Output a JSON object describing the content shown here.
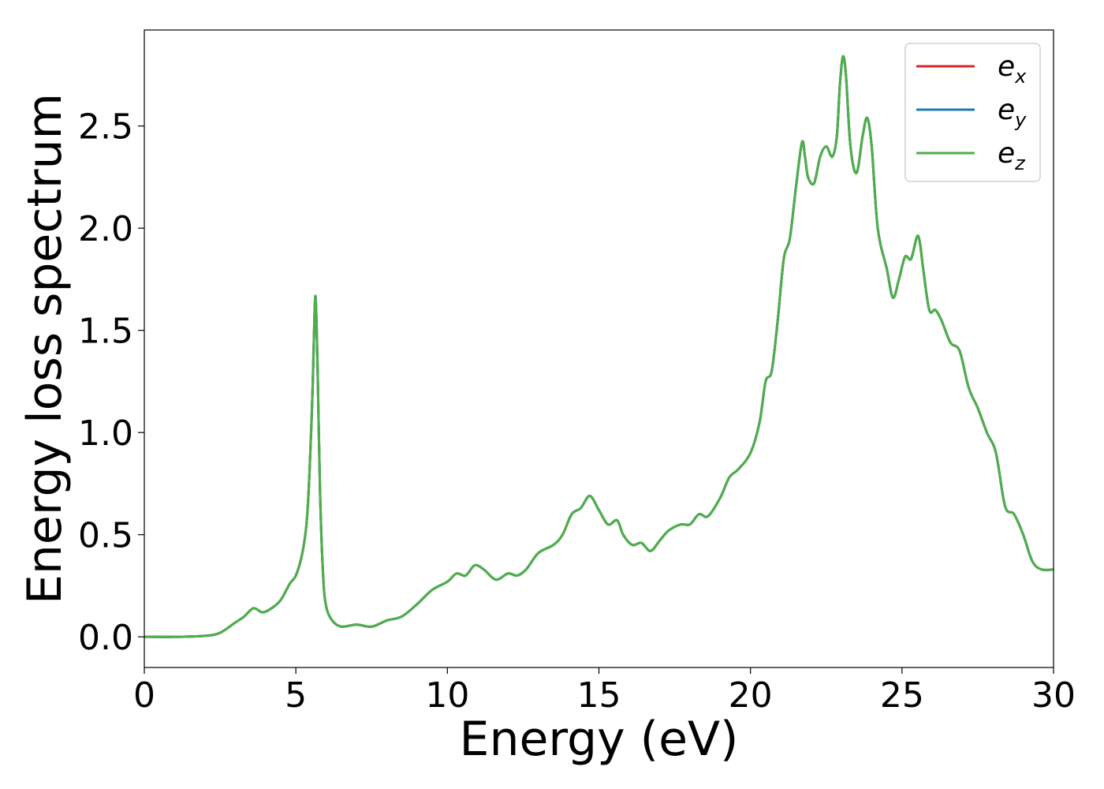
{
  "chart_data": {
    "type": "line",
    "title": "",
    "xlabel": "Energy (eV)",
    "ylabel": "Energy loss spectrum",
    "xlim": [
      0,
      30
    ],
    "ylim": [
      -0.15,
      2.97
    ],
    "xticks": [
      0,
      5,
      10,
      15,
      20,
      25,
      30
    ],
    "xtick_labels": [
      "0",
      "5",
      "10",
      "15",
      "20",
      "25",
      "30"
    ],
    "yticks": [
      0.0,
      0.5,
      1.0,
      1.5,
      2.0,
      2.5
    ],
    "ytick_labels": [
      "0.0",
      "0.5",
      "1.0",
      "1.5",
      "2.0",
      "2.5"
    ],
    "grid": false,
    "legend": {
      "position": "top-right"
    },
    "x": [
      0,
      1,
      2,
      2.5,
      3,
      3.3,
      3.6,
      3.9,
      4.2,
      4.5,
      4.8,
      5.0,
      5.2,
      5.35,
      5.45,
      5.55,
      5.62,
      5.66,
      5.72,
      5.8,
      5.9,
      6.0,
      6.2,
      6.5,
      7.0,
      7.5,
      8.0,
      8.5,
      9.0,
      9.5,
      10.0,
      10.3,
      10.6,
      10.9,
      11.2,
      11.6,
      12.0,
      12.3,
      12.6,
      13.0,
      13.5,
      13.8,
      14.1,
      14.4,
      14.7,
      15.0,
      15.3,
      15.6,
      15.8,
      16.1,
      16.4,
      16.7,
      17.0,
      17.3,
      17.7,
      18.0,
      18.3,
      18.6,
      19.0,
      19.3,
      19.6,
      20.0,
      20.3,
      20.5,
      20.7,
      20.9,
      21.1,
      21.3,
      21.5,
      21.7,
      21.8,
      21.9,
      22.1,
      22.3,
      22.5,
      22.7,
      22.85,
      22.95,
      23.05,
      23.15,
      23.3,
      23.5,
      23.7,
      23.85,
      24.0,
      24.2,
      24.5,
      24.7,
      24.9,
      25.1,
      25.3,
      25.5,
      25.6,
      25.7,
      25.9,
      26.1,
      26.3,
      26.6,
      26.9,
      27.2,
      27.5,
      27.8,
      28.1,
      28.4,
      28.7,
      29.0,
      29.3,
      29.6,
      30.0
    ],
    "series": [
      {
        "name": "e_x",
        "name_main": "e",
        "name_sub": "x",
        "color": "#d62728",
        "values": [
          0.0,
          0.0,
          0.005,
          0.02,
          0.07,
          0.1,
          0.14,
          0.12,
          0.14,
          0.18,
          0.26,
          0.3,
          0.4,
          0.55,
          0.8,
          1.2,
          1.6,
          1.64,
          1.3,
          0.7,
          0.3,
          0.15,
          0.08,
          0.05,
          0.06,
          0.05,
          0.08,
          0.1,
          0.16,
          0.23,
          0.27,
          0.31,
          0.3,
          0.35,
          0.33,
          0.28,
          0.31,
          0.3,
          0.33,
          0.41,
          0.45,
          0.5,
          0.6,
          0.63,
          0.69,
          0.62,
          0.55,
          0.57,
          0.5,
          0.45,
          0.46,
          0.42,
          0.47,
          0.52,
          0.55,
          0.55,
          0.6,
          0.59,
          0.68,
          0.78,
          0.82,
          0.9,
          1.05,
          1.25,
          1.3,
          1.55,
          1.85,
          1.95,
          2.2,
          2.42,
          2.35,
          2.25,
          2.22,
          2.35,
          2.4,
          2.35,
          2.45,
          2.7,
          2.84,
          2.75,
          2.4,
          2.27,
          2.45,
          2.54,
          2.4,
          2.0,
          1.8,
          1.66,
          1.75,
          1.86,
          1.85,
          1.96,
          1.92,
          1.8,
          1.6,
          1.6,
          1.55,
          1.44,
          1.4,
          1.22,
          1.12,
          1.0,
          0.9,
          0.64,
          0.6,
          0.5,
          0.37,
          0.33,
          0.33
        ]
      },
      {
        "name": "e_y",
        "name_main": "e",
        "name_sub": "y",
        "color": "#1f77b4",
        "values": [
          0.0,
          0.0,
          0.005,
          0.02,
          0.07,
          0.1,
          0.14,
          0.12,
          0.14,
          0.18,
          0.26,
          0.3,
          0.4,
          0.55,
          0.8,
          1.2,
          1.6,
          1.64,
          1.3,
          0.7,
          0.3,
          0.15,
          0.08,
          0.05,
          0.06,
          0.05,
          0.08,
          0.1,
          0.16,
          0.23,
          0.27,
          0.31,
          0.3,
          0.35,
          0.33,
          0.28,
          0.31,
          0.3,
          0.33,
          0.41,
          0.45,
          0.5,
          0.6,
          0.63,
          0.69,
          0.62,
          0.55,
          0.57,
          0.5,
          0.45,
          0.46,
          0.42,
          0.47,
          0.52,
          0.55,
          0.55,
          0.6,
          0.59,
          0.68,
          0.78,
          0.82,
          0.9,
          1.05,
          1.25,
          1.3,
          1.55,
          1.85,
          1.95,
          2.2,
          2.42,
          2.35,
          2.25,
          2.22,
          2.35,
          2.4,
          2.35,
          2.45,
          2.7,
          2.84,
          2.75,
          2.4,
          2.27,
          2.45,
          2.54,
          2.4,
          2.0,
          1.8,
          1.66,
          1.75,
          1.86,
          1.85,
          1.96,
          1.92,
          1.8,
          1.6,
          1.6,
          1.55,
          1.44,
          1.4,
          1.22,
          1.12,
          1.0,
          0.9,
          0.64,
          0.6,
          0.5,
          0.37,
          0.33,
          0.33
        ]
      },
      {
        "name": "e_z",
        "name_main": "e",
        "name_sub": "z",
        "color": "#4daf4a",
        "values": [
          0.0,
          0.0,
          0.005,
          0.02,
          0.07,
          0.1,
          0.14,
          0.12,
          0.14,
          0.18,
          0.26,
          0.3,
          0.4,
          0.55,
          0.8,
          1.2,
          1.6,
          1.64,
          1.3,
          0.7,
          0.3,
          0.15,
          0.08,
          0.05,
          0.06,
          0.05,
          0.08,
          0.1,
          0.16,
          0.23,
          0.27,
          0.31,
          0.3,
          0.35,
          0.33,
          0.28,
          0.31,
          0.3,
          0.33,
          0.41,
          0.45,
          0.5,
          0.6,
          0.63,
          0.69,
          0.62,
          0.55,
          0.57,
          0.5,
          0.45,
          0.46,
          0.42,
          0.47,
          0.52,
          0.55,
          0.55,
          0.6,
          0.59,
          0.68,
          0.78,
          0.82,
          0.9,
          1.05,
          1.25,
          1.3,
          1.55,
          1.85,
          1.95,
          2.2,
          2.42,
          2.35,
          2.25,
          2.22,
          2.35,
          2.4,
          2.35,
          2.45,
          2.7,
          2.84,
          2.75,
          2.4,
          2.27,
          2.45,
          2.54,
          2.4,
          2.0,
          1.8,
          1.66,
          1.75,
          1.86,
          1.85,
          1.96,
          1.92,
          1.8,
          1.6,
          1.6,
          1.55,
          1.44,
          1.4,
          1.22,
          1.12,
          1.0,
          0.9,
          0.64,
          0.6,
          0.5,
          0.37,
          0.33,
          0.33
        ]
      }
    ]
  }
}
